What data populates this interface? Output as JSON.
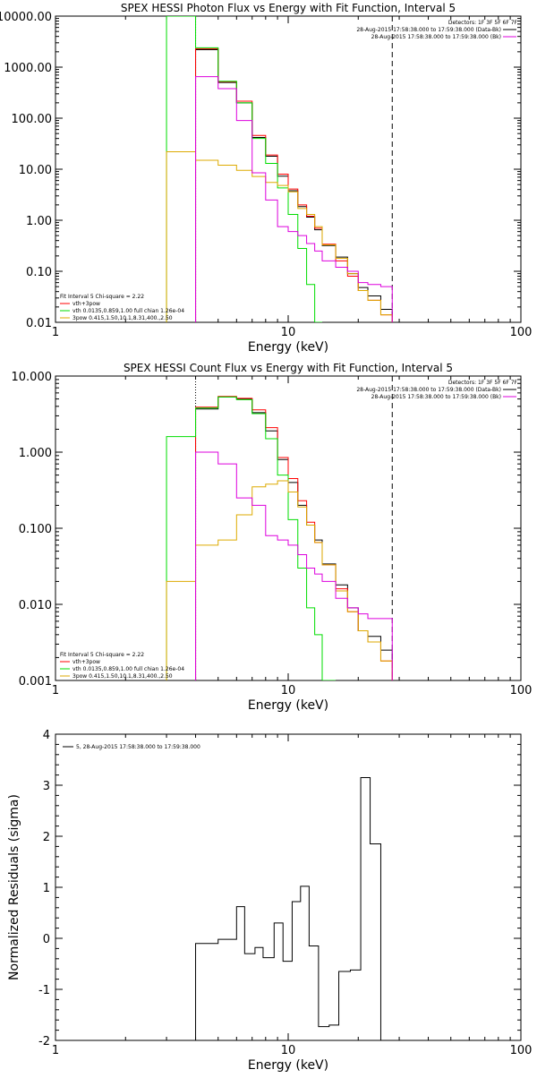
{
  "chart_data": [
    {
      "type": "line",
      "title": "SPEX HESSI Photon Flux vs Energy with Fit Function, Interval 5",
      "xlabel": "Energy (keV)",
      "ylabel": "",
      "xscale": "log",
      "yscale": "log",
      "xlim": [
        1,
        100
      ],
      "ylim": [
        0.01,
        10000
      ],
      "xticks": [
        "1",
        "10",
        "100"
      ],
      "yticks": [
        "10000.00",
        "1000.00",
        "100.00",
        "10.00",
        "1.00",
        "0.10",
        "0.01"
      ],
      "legend_top_right": [
        "Detectors: 1F 3F 5F 6F 7F",
        "28-Aug-2015 17:58:38.000 to 17:59:38.000 (Data-Bk)",
        "28-Aug-2015 17:58:38.000 to 17:59:38.000 (Bk)"
      ],
      "fit_text": "Fit Interval 5   Chi-square = 2.22",
      "legend_bottom_left": [
        "vth+3pow",
        "vth 0.0135,0.859,1.00  full chian 1.26e-04",
        "3pow 0.415,1.50,10.1,8.31,400.,2.50"
      ],
      "vlines": {
        "dotted": 4.0,
        "dashed": 28.0
      },
      "edges": [
        3.0,
        4.0,
        5.0,
        6.0,
        7.0,
        8.0,
        9.0,
        10.0,
        11.0,
        12.0,
        13.0,
        14.0,
        16.0,
        18.0,
        20.0,
        22.0,
        25.0,
        28.0
      ],
      "series": [
        {
          "name": "data",
          "color": "#000000",
          "values": [
            null,
            2200,
            500,
            200,
            42,
            18,
            7.3,
            3.8,
            1.85,
            1.15,
            0.65,
            0.32,
            0.19,
            0.09,
            0.048,
            0.033,
            0.018
          ]
        },
        {
          "name": "vth+3pow",
          "color": "#ff0000",
          "values": [
            null,
            2300,
            520,
            215,
            46,
            19,
            8.0,
            4.1,
            2.0,
            1.2,
            0.7,
            0.34,
            0.16,
            0.08,
            0.042,
            0.027,
            0.014
          ]
        },
        {
          "name": "vth",
          "color": "#00dd00",
          "values": [
            10000,
            2400,
            530,
            200,
            40,
            13,
            4.3,
            1.3,
            0.28,
            0.055,
            0.01,
            null,
            null,
            null,
            null,
            null,
            null
          ]
        },
        {
          "name": "3pow",
          "color": "#ddaa00",
          "values": [
            22,
            15,
            12,
            9.5,
            7.2,
            5.5,
            4.8,
            3.6,
            1.7,
            1.3,
            0.75,
            0.33,
            0.18,
            0.09,
            0.042,
            0.027,
            0.014
          ]
        },
        {
          "name": "background",
          "color": "#dd00dd",
          "values": [
            null,
            650,
            380,
            90,
            8.5,
            2.5,
            0.75,
            0.6,
            0.5,
            0.35,
            0.25,
            0.16,
            0.12,
            0.1,
            0.06,
            0.055,
            0.05
          ]
        }
      ]
    },
    {
      "type": "line",
      "title": "SPEX HESSI Count Flux vs Energy with Fit Function, Interval 5",
      "xlabel": "Energy (keV)",
      "ylabel": "",
      "xscale": "log",
      "yscale": "log",
      "xlim": [
        1,
        100
      ],
      "ylim": [
        0.001,
        10
      ],
      "xticks": [
        "1",
        "10",
        "100"
      ],
      "yticks": [
        "10.000",
        "1.000",
        "0.100",
        "0.010",
        "0.001"
      ],
      "legend_top_right": [
        "Detectors: 1F 3F 5F 6F 7F",
        "28-Aug-2015 17:58:38.000 to 17:59:38.000 (Data-Bk)",
        "28-Aug-2015 17:58:38.000 to 17:59:38.000 (Bk)"
      ],
      "fit_text": "Fit Interval 5   Chi-square = 2.22",
      "legend_bottom_left": [
        "vth+3pow",
        "vth 0.0135,0.859,1.00  full chian 1.26e-04",
        "3pow 0.415,1.50,10.1,8.31,400.,2.50"
      ],
      "vlines": {
        "dotted": 4.0,
        "dashed": 28.0
      },
      "edges": [
        3.0,
        4.0,
        5.0,
        6.0,
        7.0,
        8.0,
        9.0,
        10.0,
        11.0,
        12.0,
        13.0,
        14.0,
        16.0,
        18.0,
        20.0,
        22.0,
        25.0,
        28.0
      ],
      "series": [
        {
          "name": "data",
          "color": "#000000",
          "values": [
            null,
            3.7,
            5.3,
            5.0,
            3.3,
            1.9,
            0.8,
            0.4,
            0.2,
            0.11,
            0.07,
            0.034,
            0.018,
            0.009,
            0.0045,
            0.0038,
            0.0025
          ]
        },
        {
          "name": "vth+3pow",
          "color": "#ff0000",
          "values": [
            null,
            3.9,
            5.4,
            5.1,
            3.6,
            2.1,
            0.85,
            0.45,
            0.23,
            0.12,
            0.065,
            0.033,
            0.016,
            0.008,
            0.0045,
            0.0032,
            0.0018
          ]
        },
        {
          "name": "vth",
          "color": "#00dd00",
          "values": [
            1.6,
            3.8,
            5.3,
            4.9,
            3.2,
            1.5,
            0.5,
            0.13,
            0.03,
            0.009,
            0.004,
            0.001,
            null,
            null,
            null,
            null,
            null
          ]
        },
        {
          "name": "3pow",
          "color": "#ddaa00",
          "values": [
            0.02,
            0.06,
            0.07,
            0.15,
            0.35,
            0.38,
            0.42,
            0.3,
            0.19,
            0.11,
            0.065,
            0.033,
            0.015,
            0.008,
            0.0045,
            0.0032,
            0.0018
          ]
        },
        {
          "name": "background",
          "color": "#dd00dd",
          "values": [
            null,
            1.0,
            0.7,
            0.25,
            0.2,
            0.08,
            0.07,
            0.06,
            0.045,
            0.03,
            0.025,
            0.02,
            0.012,
            0.009,
            0.0075,
            0.0065,
            0.0065
          ]
        }
      ]
    },
    {
      "type": "line",
      "title": "",
      "xlabel": "Energy (keV)",
      "ylabel": "Normalized Residuals (sigma)",
      "xscale": "log",
      "yscale": "linear",
      "xlim": [
        1,
        100
      ],
      "ylim": [
        -2,
        4
      ],
      "xticks": [
        "1",
        "10",
        "100"
      ],
      "yticks": [
        "4",
        "3",
        "2",
        "1",
        "0",
        "-1",
        "-2"
      ],
      "legend_top_left": [
        "5, 28-Aug-2015 17:58:38.000 to 17:59:38.000"
      ],
      "edges": [
        4.0,
        5.0,
        6.0,
        6.5,
        7.2,
        7.8,
        8.7,
        9.5,
        10.4,
        11.3,
        12.3,
        13.5,
        15.0,
        16.5,
        18.5,
        20.5,
        22.5,
        25.0,
        28.0
      ],
      "series": [
        {
          "name": "residuals",
          "color": "#000000",
          "values": [
            -0.1,
            -0.02,
            0.62,
            -0.3,
            -0.18,
            -0.38,
            0.3,
            -0.45,
            0.72,
            1.02,
            -0.15,
            -1.73,
            -1.7,
            -0.65,
            -0.62,
            3.15,
            1.85,
            null
          ]
        }
      ]
    }
  ]
}
